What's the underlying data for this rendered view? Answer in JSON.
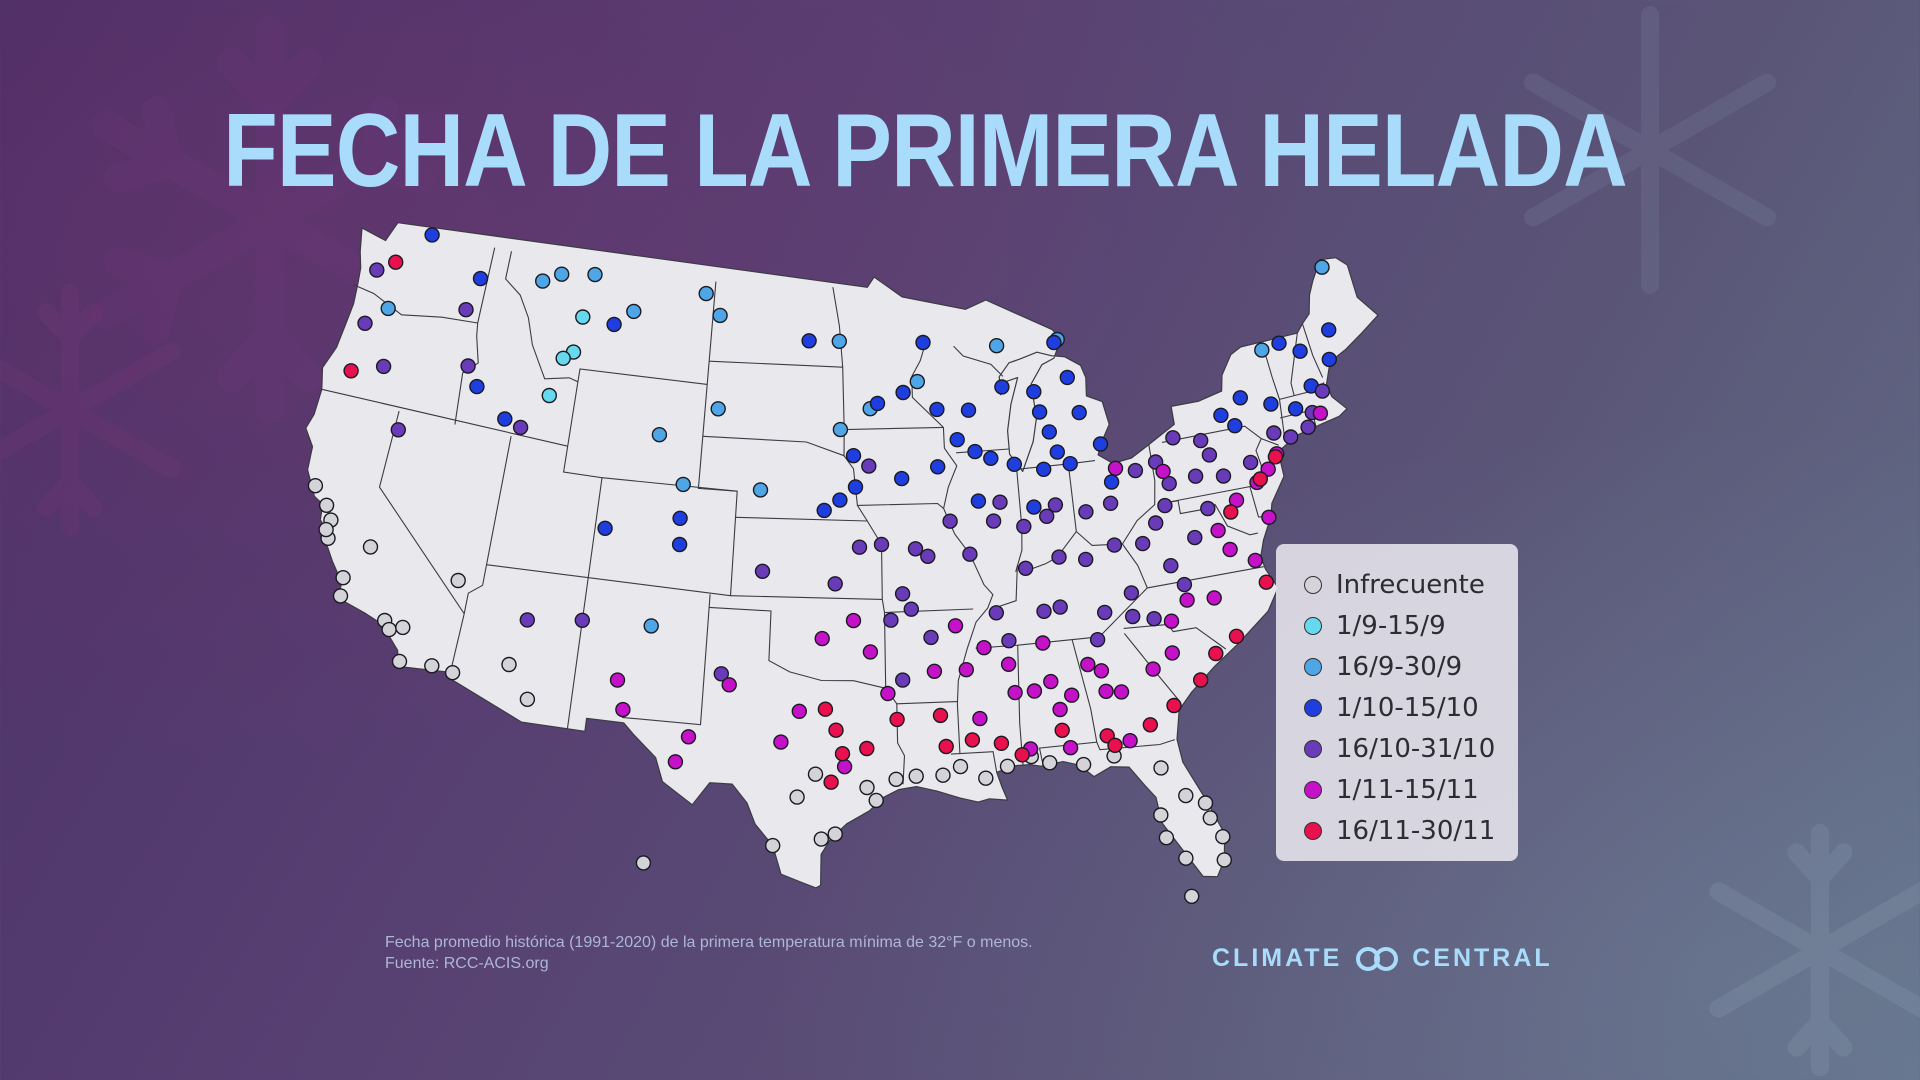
{
  "title": "FECHA DE LA PRIMERA HELADA",
  "colors": {
    "Infrecuente": "#d3d3d8",
    "1/9-15/9": "#66d9ee",
    "16/9-30/9": "#4ea6e6",
    "1/10-15/10": "#1f3ee0",
    "16/10-31/10": "#6a3bb8",
    "1/11-15/11": "#c511c8",
    "16/11-30/11": "#e8114e"
  },
  "legend": {
    "items": [
      {
        "label": "Infrecuente",
        "key": "Infrecuente"
      },
      {
        "label": "1/9-15/9",
        "key": "1/9-15/9"
      },
      {
        "label": "16/9-30/9",
        "key": "16/9-30/9"
      },
      {
        "label": "1/10-15/10",
        "key": "1/10-15/10"
      },
      {
        "label": "16/10-31/10",
        "key": "16/10-31/10"
      },
      {
        "label": "1/11-15/11",
        "key": "1/11-15/11"
      },
      {
        "label": "16/11-30/11",
        "key": "16/11-30/11"
      }
    ]
  },
  "footnote": {
    "line1": "Fecha promedio histórica (1991-2020) de la primera temperatura mínima de 32°F o menos.",
    "line2": "Fuente: RCC-ACIS.org"
  },
  "brand": {
    "left": "CLIMATE",
    "right": "CENTRAL",
    "logo_icon": "climate-central-logo-icon"
  },
  "stations": {
    "Infrecuente": [
      [
        -123.1,
        38.4
      ],
      [
        -122.3,
        37.8
      ],
      [
        -121.9,
        37.3
      ],
      [
        -121.8,
        36.6
      ],
      [
        -122.0,
        36.9
      ],
      [
        -120.6,
        35.3
      ],
      [
        -120.5,
        34.6
      ],
      [
        -119.7,
        36.7
      ],
      [
        -118.2,
        34.1
      ],
      [
        -117.9,
        33.8
      ],
      [
        -117.3,
        34.0
      ],
      [
        -117.1,
        32.7
      ],
      [
        -115.6,
        32.8
      ],
      [
        -114.6,
        32.7
      ],
      [
        -115.2,
        36.2
      ],
      [
        -112.1,
        33.4
      ],
      [
        -111.0,
        32.2
      ],
      [
        -97.4,
        27.8
      ],
      [
        -98.5,
        29.4
      ],
      [
        -99.5,
        27.5
      ],
      [
        -97.7,
        30.3
      ],
      [
        -95.4,
        29.8
      ],
      [
        -95.0,
        29.3
      ],
      [
        -94.1,
        30.1
      ],
      [
        -93.2,
        30.2
      ],
      [
        -92.0,
        30.2
      ],
      [
        -91.2,
        30.5
      ],
      [
        -90.1,
        30.0
      ],
      [
        -89.1,
        30.4
      ],
      [
        -88.0,
        30.7
      ],
      [
        -87.2,
        30.4
      ],
      [
        -85.7,
        30.2
      ],
      [
        -84.3,
        30.4
      ],
      [
        -82.3,
        29.7
      ],
      [
        -82.6,
        27.9
      ],
      [
        -82.5,
        27.0
      ],
      [
        -81.4,
        28.5
      ],
      [
        -80.6,
        28.1
      ],
      [
        -80.2,
        25.8
      ],
      [
        -80.1,
        26.7
      ],
      [
        -81.8,
        26.1
      ],
      [
        -81.8,
        24.6
      ],
      [
        -96.8,
        28.0
      ],
      [
        -80.5,
        27.5
      ],
      [
        -105.0,
        26.5
      ]
    ],
    "1/9-15/9": [
      [
        -111.5,
        45.6
      ],
      [
        -111.3,
        47.0
      ],
      [
        -112.0,
        45.3
      ],
      [
        -112.4,
        43.8
      ]
    ],
    "16/9-30/9": [
      [
        -122.0,
        45.7
      ],
      [
        -113.9,
        48.1
      ],
      [
        -111.0,
        48.7
      ],
      [
        -108.5,
        47.5
      ],
      [
        -104.5,
        48.5
      ],
      [
        -103.6,
        47.7
      ],
      [
        -103.3,
        44.1
      ],
      [
        -106.3,
        42.9
      ],
      [
        -104.8,
        41.1
      ],
      [
        -100.8,
        41.1
      ],
      [
        -96.7,
        43.5
      ],
      [
        -92.5,
        45.3
      ],
      [
        -88.0,
        46.5
      ],
      [
        -84.6,
        46.5
      ],
      [
        -73.6,
        44.7
      ],
      [
        -69.2,
        47.2
      ],
      [
        -105.7,
        35.6
      ],
      [
        -112.9,
        48.5
      ],
      [
        -96.8,
        46.9
      ],
      [
        -95.1,
        44.3
      ]
    ],
    "1/10-15/10": [
      [
        -120.7,
        48.9
      ],
      [
        -117.4,
        47.7
      ],
      [
        -116.3,
        43.6
      ],
      [
        -114.5,
        42.6
      ],
      [
        -109.5,
        46.9
      ],
      [
        -98.5,
        46.9
      ],
      [
        -93.3,
        44.9
      ],
      [
        -94.7,
        44.5
      ],
      [
        -92.1,
        46.8
      ],
      [
        -91.5,
        44.2
      ],
      [
        -89.8,
        44.1
      ],
      [
        -87.9,
        44.9
      ],
      [
        -86.2,
        44.6
      ],
      [
        -85.6,
        43.0
      ],
      [
        -85.3,
        42.2
      ],
      [
        -83.9,
        43.6
      ],
      [
        -84.3,
        45.0
      ],
      [
        -84.8,
        46.4
      ],
      [
        -86.0,
        43.8
      ],
      [
        -90.5,
        43.0
      ],
      [
        -88.8,
        42.2
      ],
      [
        -89.6,
        42.5
      ],
      [
        -91.6,
        42.0
      ],
      [
        -93.5,
        41.6
      ],
      [
        -96.0,
        42.5
      ],
      [
        -96.7,
        40.8
      ],
      [
        -97.5,
        40.4
      ],
      [
        -95.9,
        41.3
      ],
      [
        -89.6,
        40.6
      ],
      [
        -87.6,
        41.9
      ],
      [
        -86.1,
        41.6
      ],
      [
        -84.7,
        41.7
      ],
      [
        -82.7,
        40.8
      ],
      [
        -86.8,
        40.2
      ],
      [
        -83.0,
        42.3
      ],
      [
        -75.3,
        43.1
      ],
      [
        -73.8,
        42.6
      ],
      [
        -72.6,
        42.2
      ],
      [
        -71.5,
        42.9
      ],
      [
        -70.2,
        43.7
      ],
      [
        -72.6,
        44.8
      ],
      [
        -71.6,
        44.3
      ],
      [
        -75.9,
        42.1
      ],
      [
        -76.5,
        42.6
      ],
      [
        -104.7,
        38.8
      ],
      [
        -108.5,
        39.1
      ],
      [
        -104.8,
        39.8
      ],
      [
        -69.8,
        44.8
      ]
    ],
    "16/10-31/10": [
      [
        -123.0,
        44.9
      ],
      [
        -123.2,
        47.0
      ],
      [
        -121.4,
        43.5
      ],
      [
        -117.8,
        46.4
      ],
      [
        -117.0,
        44.3
      ],
      [
        -119.8,
        41.3
      ],
      [
        -113.6,
        42.4
      ],
      [
        -100.5,
        38.0
      ],
      [
        -95.7,
        39.0
      ],
      [
        -92.9,
        38.9
      ],
      [
        -94.6,
        39.1
      ],
      [
        -96.9,
        37.6
      ],
      [
        -93.6,
        37.2
      ],
      [
        -92.3,
        38.6
      ],
      [
        -90.2,
        38.6
      ],
      [
        -88.5,
        40.5
      ],
      [
        -88.9,
        39.8
      ],
      [
        -91.1,
        39.9
      ],
      [
        -87.4,
        39.5
      ],
      [
        -85.7,
        40.2
      ],
      [
        -86.2,
        39.8
      ],
      [
        -84.2,
        39.8
      ],
      [
        -82.9,
        40.0
      ],
      [
        -81.4,
        41.1
      ],
      [
        -80.3,
        41.3
      ],
      [
        -79.8,
        40.4
      ],
      [
        -78.4,
        40.5
      ],
      [
        -77.0,
        40.3
      ],
      [
        -75.5,
        40.6
      ],
      [
        -77.5,
        41.2
      ],
      [
        -79.2,
        42.1
      ],
      [
        -74.0,
        41.5
      ],
      [
        -71.8,
        41.9
      ],
      [
        -72.2,
        41.4
      ],
      [
        -73.2,
        41.2
      ],
      [
        -71.0,
        42.6
      ],
      [
        -87.5,
        37.9
      ],
      [
        -85.8,
        38.2
      ],
      [
        -84.5,
        38.0
      ],
      [
        -83.0,
        38.4
      ],
      [
        -81.6,
        38.3
      ],
      [
        -80.2,
        39.6
      ],
      [
        -79.0,
        38.2
      ],
      [
        -78.1,
        39.2
      ],
      [
        -86.0,
        36.3
      ],
      [
        -86.8,
        36.2
      ],
      [
        -83.9,
        35.9
      ],
      [
        -82.5,
        36.5
      ],
      [
        -81.6,
        35.4
      ],
      [
        -80.4,
        37.3
      ],
      [
        -79.9,
        36.5
      ],
      [
        -82.6,
        35.6
      ],
      [
        -88.6,
        35.2
      ],
      [
        -89.1,
        36.3
      ],
      [
        -92.3,
        35.5
      ],
      [
        -94.2,
        36.2
      ],
      [
        -93.2,
        36.6
      ],
      [
        -102.2,
        34.0
      ],
      [
        -111.6,
        35.2
      ],
      [
        -109.0,
        35.5
      ],
      [
        -84.4,
        34.9
      ],
      [
        -77.8,
        41.8
      ],
      [
        -80.8,
        39.0
      ],
      [
        -95.2,
        42.1
      ],
      [
        -93.7,
        33.9
      ]
    ],
    "1/11-15/11": [
      [
        -107.0,
        33.4
      ],
      [
        -106.6,
        32.3
      ],
      [
        -101.8,
        33.6
      ],
      [
        -99.3,
        31.5
      ],
      [
        -98.5,
        32.7
      ],
      [
        -97.5,
        35.5
      ],
      [
        -96.0,
        36.2
      ],
      [
        -95.2,
        35.0
      ],
      [
        -94.4,
        33.4
      ],
      [
        -92.2,
        34.2
      ],
      [
        -91.1,
        35.9
      ],
      [
        -90.2,
        32.3
      ],
      [
        -90.7,
        34.2
      ],
      [
        -88.7,
        34.3
      ],
      [
        -88.5,
        33.2
      ],
      [
        -87.6,
        33.2
      ],
      [
        -86.8,
        33.5
      ],
      [
        -85.9,
        32.9
      ],
      [
        -86.5,
        32.4
      ],
      [
        -85.0,
        34.0
      ],
      [
        -84.4,
        33.7
      ],
      [
        -83.6,
        32.8
      ],
      [
        -82.0,
        33.5
      ],
      [
        -81.0,
        34.0
      ],
      [
        -80.8,
        35.2
      ],
      [
        -79.9,
        35.9
      ],
      [
        -78.6,
        35.8
      ],
      [
        -77.4,
        37.5
      ],
      [
        -76.3,
        36.9
      ],
      [
        -76.6,
        39.3
      ],
      [
        -75.4,
        39.8
      ],
      [
        -74.7,
        40.2
      ],
      [
        -74.1,
        40.7
      ],
      [
        -71.4,
        41.8
      ],
      [
        -87.0,
        35.0
      ],
      [
        -89.8,
        35.0
      ],
      [
        -84.3,
        32.9
      ],
      [
        -83.5,
        30.9
      ],
      [
        -86.2,
        30.9
      ],
      [
        -80.0,
        40.9
      ],
      [
        -82.4,
        41.3
      ],
      [
        -77.8,
        38.3
      ],
      [
        -75.2,
        38.4
      ],
      [
        -96.4,
        30.6
      ],
      [
        -103.5,
        31.5
      ],
      [
        -104.0,
        30.5
      ],
      [
        -88.0,
        31.0
      ]
    ],
    "16/11-30/11": [
      [
        -122.3,
        47.5
      ],
      [
        -123.0,
        43.0
      ],
      [
        -97.3,
        32.8
      ],
      [
        -96.8,
        32.0
      ],
      [
        -96.5,
        31.1
      ],
      [
        -95.4,
        31.3
      ],
      [
        -94.0,
        32.4
      ],
      [
        -92.0,
        32.5
      ],
      [
        -91.8,
        31.3
      ],
      [
        -90.6,
        31.5
      ],
      [
        -89.3,
        31.3
      ],
      [
        -88.4,
        30.8
      ],
      [
        -86.5,
        31.6
      ],
      [
        -84.5,
        31.2
      ],
      [
        -82.5,
        31.4
      ],
      [
        -81.3,
        32.0
      ],
      [
        -79.9,
        32.8
      ],
      [
        -79.0,
        33.7
      ],
      [
        -77.9,
        34.2
      ],
      [
        -76.0,
        36.0
      ],
      [
        -75.2,
        39.9
      ],
      [
        -77.0,
        38.9
      ],
      [
        -74.2,
        40.6
      ],
      [
        -97.0,
        30.0
      ],
      [
        -84.2,
        30.8
      ]
    ]
  }
}
